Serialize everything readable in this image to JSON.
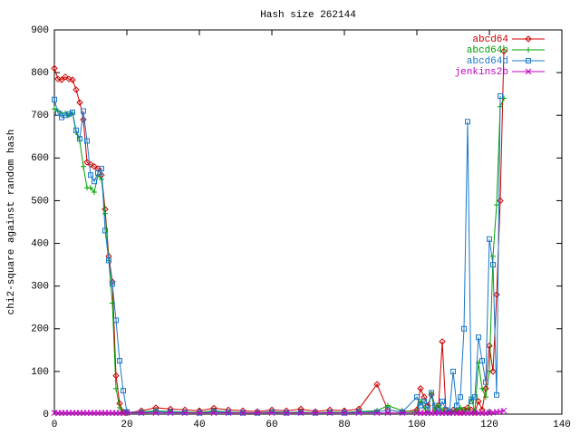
{
  "chart_data": {
    "type": "line",
    "title": "Hash size 262144",
    "y_label": "chi2-square against random hash",
    "x": [
      0,
      1,
      2,
      3,
      4,
      5,
      6,
      7,
      8,
      9,
      10,
      11,
      12,
      13,
      14,
      15,
      16,
      17,
      18,
      19,
      20,
      24,
      28,
      32,
      36,
      40,
      44,
      48,
      52,
      56,
      60,
      64,
      68,
      72,
      76,
      80,
      84,
      89,
      92,
      96,
      100,
      101,
      102,
      103,
      104,
      105,
      106,
      107,
      108,
      109,
      110,
      111,
      112,
      113,
      114,
      115,
      116,
      117,
      118,
      119,
      120,
      121,
      122,
      123,
      124
    ],
    "series": [
      {
        "name": "abcd64",
        "color": "#cc0000",
        "marker": "diamond",
        "values": [
          810,
          785,
          783,
          790,
          785,
          783,
          760,
          730,
          690,
          590,
          585,
          580,
          575,
          560,
          480,
          370,
          310,
          90,
          25,
          5,
          3,
          8,
          15,
          12,
          10,
          8,
          14,
          10,
          8,
          6,
          10,
          8,
          12,
          6,
          10,
          8,
          12,
          70,
          10,
          5,
          10,
          60,
          40,
          20,
          45,
          10,
          20,
          170,
          10,
          5,
          10,
          8,
          5,
          10,
          15,
          10,
          5,
          30,
          10,
          60,
          160,
          100,
          280,
          500,
          850
        ]
      },
      {
        "name": "abcd64b",
        "color": "#00a000",
        "marker": "plus",
        "values": [
          715,
          710,
          705,
          705,
          700,
          705,
          660,
          640,
          580,
          530,
          530,
          520,
          560,
          550,
          470,
          360,
          260,
          60,
          15,
          5,
          3,
          5,
          8,
          6,
          5,
          4,
          8,
          5,
          4,
          3,
          6,
          4,
          5,
          3,
          5,
          4,
          6,
          8,
          20,
          8,
          5,
          30,
          15,
          5,
          50,
          8,
          20,
          10,
          5,
          8,
          5,
          10,
          15,
          8,
          10,
          40,
          5,
          120,
          60,
          40,
          100,
          370,
          490,
          720,
          740
        ]
      },
      {
        "name": "abcd64d",
        "color": "#1a78c8",
        "marker": "square",
        "values": [
          737,
          705,
          695,
          700,
          703,
          707,
          665,
          645,
          710,
          640,
          560,
          545,
          565,
          575,
          430,
          360,
          305,
          220,
          125,
          55,
          5,
          4,
          6,
          5,
          4,
          3,
          6,
          4,
          3,
          3,
          5,
          3,
          4,
          3,
          4,
          3,
          5,
          5,
          10,
          5,
          40,
          20,
          30,
          10,
          50,
          20,
          5,
          30,
          10,
          5,
          100,
          20,
          40,
          200,
          685,
          30,
          40,
          180,
          125,
          75,
          410,
          350,
          45,
          745,
          null
        ]
      },
      {
        "name": "jenkins2b",
        "color": "#c000c0",
        "marker": "cross",
        "values": [
          3,
          3,
          3,
          3,
          3,
          3,
          3,
          3,
          3,
          3,
          3,
          3,
          3,
          3,
          3,
          3,
          3,
          3,
          3,
          3,
          3,
          3,
          3,
          3,
          3,
          3,
          3,
          3,
          3,
          3,
          3,
          3,
          3,
          3,
          3,
          3,
          3,
          3,
          3,
          3,
          3,
          3,
          3,
          3,
          3,
          3,
          3,
          3,
          3,
          3,
          3,
          3,
          3,
          3,
          3,
          3,
          3,
          3,
          3,
          3,
          3,
          4,
          5,
          6,
          8
        ]
      }
    ],
    "xlim": [
      0,
      140
    ],
    "xticks": [
      0,
      20,
      40,
      60,
      80,
      100,
      120,
      140
    ],
    "ylim": [
      0,
      900
    ],
    "yticks": [
      0,
      100,
      200,
      300,
      400,
      500,
      600,
      700,
      800,
      900
    ],
    "legend": "top-right"
  }
}
